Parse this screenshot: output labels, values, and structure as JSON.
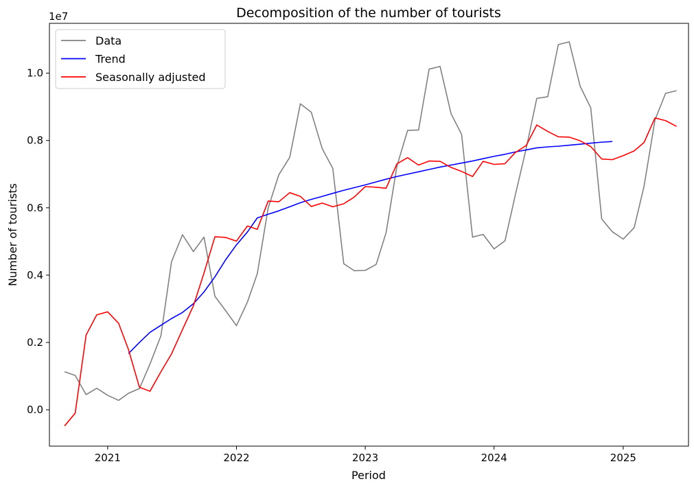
{
  "chart_data": {
    "type": "line",
    "title": "Decomposition of the number of tourists",
    "xlabel": "Period",
    "ylabel": "Number of tourists",
    "y_offset_text": "1e7",
    "y_scale_factor": 10000000,
    "xlim": [
      "2020-07-20",
      "2025-07-05"
    ],
    "ylim": [
      -0.108,
      1.148
    ],
    "x_ticks": [
      {
        "date": "2021-01-01",
        "label": "2021"
      },
      {
        "date": "2022-01-01",
        "label": "2022"
      },
      {
        "date": "2023-01-01",
        "label": "2023"
      },
      {
        "date": "2024-01-01",
        "label": "2024"
      },
      {
        "date": "2025-01-01",
        "label": "2025"
      }
    ],
    "y_ticks": [
      {
        "value": 0.0,
        "label": "0.0"
      },
      {
        "value": 0.2,
        "label": "0.2"
      },
      {
        "value": 0.4,
        "label": "0.4"
      },
      {
        "value": 0.6,
        "label": "0.6"
      },
      {
        "value": 0.8,
        "label": "0.8"
      },
      {
        "value": 1.0,
        "label": "1.0"
      }
    ],
    "grid": false,
    "legend_position": "top-left",
    "series": [
      {
        "name": "Data",
        "color": "#808080",
        "start": "2020-09",
        "values": [
          0.113,
          0.102,
          0.045,
          0.064,
          0.043,
          0.028,
          0.049,
          0.063,
          0.136,
          0.22,
          0.44,
          0.52,
          0.47,
          0.513,
          0.337,
          0.295,
          0.25,
          0.32,
          0.404,
          0.6,
          0.698,
          0.75,
          0.909,
          0.884,
          0.776,
          0.717,
          0.434,
          0.413,
          0.414,
          0.432,
          0.526,
          0.725,
          0.83,
          0.831,
          1.012,
          1.02,
          0.88,
          0.818,
          0.513,
          0.521,
          0.478,
          0.502,
          0.637,
          0.776,
          0.925,
          0.93,
          1.085,
          1.093,
          0.961,
          0.897,
          0.567,
          0.529,
          0.507,
          0.541,
          0.664,
          0.861,
          0.94,
          0.948
        ]
      },
      {
        "name": "Trend",
        "color": "#0000ff",
        "start": "2021-03",
        "values": [
          0.167,
          0.2,
          0.23,
          0.251,
          0.271,
          0.289,
          0.315,
          0.35,
          0.395,
          0.445,
          0.49,
          0.528,
          0.57,
          0.581,
          0.591,
          0.603,
          0.615,
          0.625,
          0.634,
          0.643,
          0.652,
          0.66,
          0.668,
          0.677,
          0.685,
          0.693,
          0.7,
          0.707,
          0.714,
          0.721,
          0.727,
          0.733,
          0.739,
          0.746,
          0.753,
          0.759,
          0.766,
          0.772,
          0.778,
          0.781,
          0.783,
          0.786,
          0.789,
          0.792,
          0.795,
          0.797
        ]
      },
      {
        "name": "Seasonally adjusted",
        "color": "#ff0000",
        "start": "2020-09",
        "values": [
          -0.048,
          -0.01,
          0.222,
          0.282,
          0.291,
          0.257,
          0.179,
          0.067,
          0.055,
          0.113,
          0.166,
          0.238,
          0.309,
          0.406,
          0.514,
          0.512,
          0.501,
          0.546,
          0.536,
          0.62,
          0.618,
          0.645,
          0.634,
          0.604,
          0.614,
          0.603,
          0.612,
          0.632,
          0.663,
          0.661,
          0.658,
          0.731,
          0.749,
          0.727,
          0.739,
          0.738,
          0.72,
          0.708,
          0.693,
          0.738,
          0.729,
          0.731,
          0.764,
          0.785,
          0.846,
          0.827,
          0.811,
          0.81,
          0.799,
          0.782,
          0.745,
          0.743,
          0.755,
          0.769,
          0.794,
          0.867,
          0.859,
          0.842
        ]
      }
    ]
  }
}
